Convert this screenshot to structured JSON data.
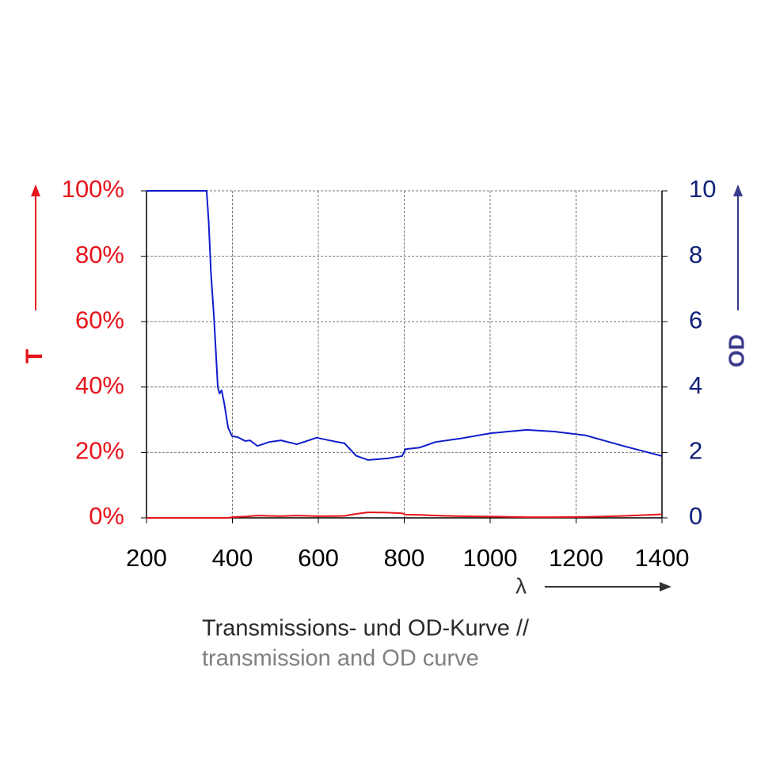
{
  "chart_data": {
    "type": "line",
    "x_label": "λ",
    "y_label": "T",
    "y2_label": "OD",
    "caption": [
      "Transmissions- und OD-Kurve //",
      "transmission and OD curve"
    ],
    "x": [
      200,
      300,
      340,
      345,
      350,
      357,
      366,
      370,
      375,
      381,
      390,
      399,
      412,
      430,
      441,
      458,
      486,
      513,
      550,
      596,
      633,
      661,
      688,
      716,
      762,
      795,
      803,
      836,
      873,
      928,
      1002,
      1085,
      1149,
      1223,
      1315,
      1400
    ],
    "series": [
      {
        "name": "T",
        "color": "#e8141b",
        "values": [
          0,
          0,
          0,
          0,
          0,
          0,
          0,
          0,
          0,
          0,
          0,
          0.2,
          0.3,
          0.4,
          0.5,
          0.7,
          0.6,
          0.5,
          0.7,
          0.5,
          0.5,
          0.6,
          1.2,
          1.7,
          1.6,
          1.4,
          1.0,
          0.9,
          0.7,
          0.5,
          0.4,
          0.2,
          0.2,
          0.3,
          0.6,
          1.1
        ]
      },
      {
        "name": "OD",
        "color": "#0f1ccc",
        "axis": "y2",
        "values": [
          10,
          10,
          10,
          9.0,
          7.5,
          6.15,
          4.0,
          3.8,
          3.9,
          3.5,
          2.76,
          2.5,
          2.47,
          2.35,
          2.37,
          2.2,
          2.32,
          2.37,
          2.25,
          2.45,
          2.35,
          2.28,
          1.9,
          1.77,
          1.82,
          1.89,
          2.1,
          2.15,
          2.32,
          2.42,
          2.59,
          2.69,
          2.64,
          2.52,
          2.18,
          1.89
        ]
      }
    ],
    "xlim": [
      200,
      1400
    ],
    "xticks": [
      200,
      400,
      600,
      800,
      1000,
      1200,
      1400
    ],
    "ylim": [
      0,
      100
    ],
    "yticks": [
      {
        "value": 0,
        "label": "0%"
      },
      {
        "value": 20,
        "label": "20%"
      },
      {
        "value": 40,
        "label": "40%"
      },
      {
        "value": 60,
        "label": "60%"
      },
      {
        "value": 80,
        "label": "80%"
      },
      {
        "value": 100,
        "label": "100%"
      }
    ],
    "y2lim": [
      0,
      10
    ],
    "y2ticks": [
      0,
      2,
      4,
      6,
      8,
      10
    ],
    "grid": true
  }
}
